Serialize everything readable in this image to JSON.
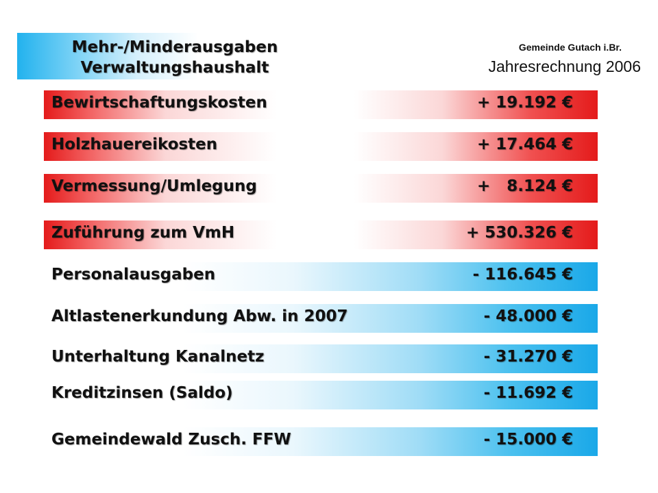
{
  "header": {
    "title_line1": "Mehr-/Minderausgaben",
    "title_line2": "Verwaltungshaushalt",
    "organization": "Gemeinde Gutach i.Br.",
    "report": "Jahresrechnung 2006"
  },
  "colors": {
    "increase_bar": "#e41b1b",
    "decrease_bar": "#1aa8e8"
  },
  "items": [
    {
      "label": "Bewirtschaftungskosten",
      "value": "+ 19.192 €",
      "direction": "increase"
    },
    {
      "label": "Holzhauereikosten",
      "value": "+ 17.464 €",
      "direction": "increase"
    },
    {
      "label": "Vermessung/Umlegung",
      "value": "+   8.124 €",
      "direction": "increase"
    },
    {
      "label": "Zuführung zum VmH",
      "value": "+ 530.326 €",
      "direction": "increase"
    },
    {
      "label": "Personalausgaben",
      "value": "- 116.645 €",
      "direction": "decrease"
    },
    {
      "label": "Altlastenerkundung Abw. in 2007",
      "value": "- 48.000 €",
      "direction": "decrease"
    },
    {
      "label": "Unterhaltung Kanalnetz",
      "value": "- 31.270 €",
      "direction": "decrease"
    },
    {
      "label": "Kreditzinsen (Saldo)",
      "value": "- 11.692 €",
      "direction": "decrease"
    },
    {
      "label": "Gemeindewald Zusch. FFW",
      "value": "- 15.000 €",
      "direction": "decrease"
    }
  ]
}
